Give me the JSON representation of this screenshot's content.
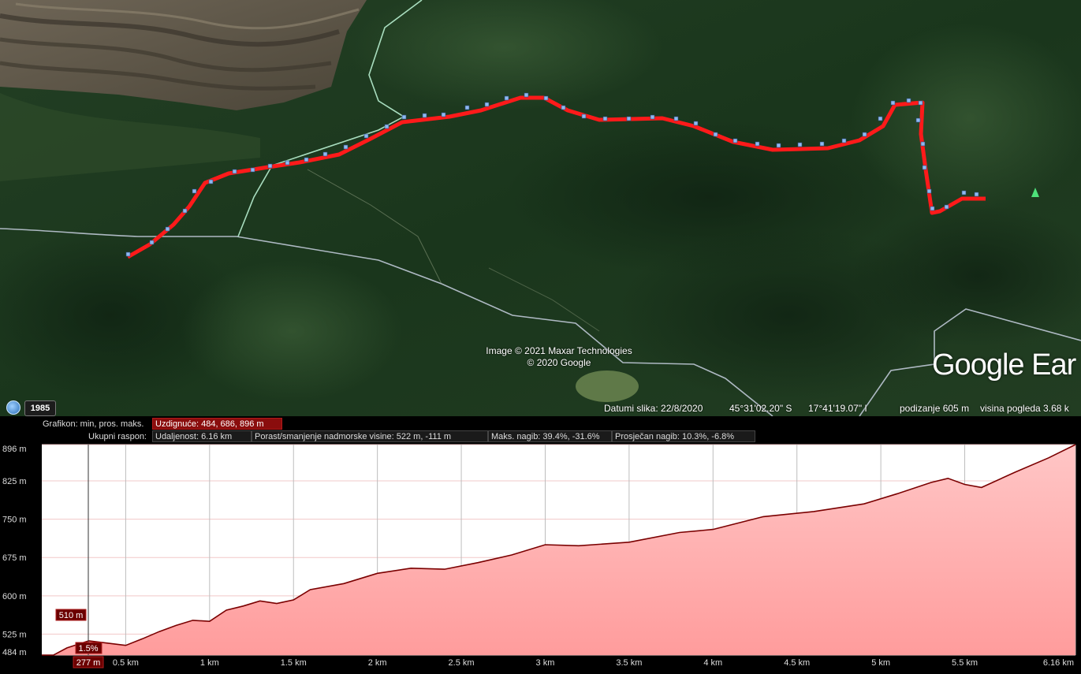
{
  "map": {
    "attribution_line1": "Image © 2021 Maxar Technologies",
    "attribution_line2": "© 2020 Google",
    "logo": "Google Ear",
    "historical_year": "1985",
    "status": {
      "image_date": "Datumi slika: 22/8/2020",
      "latitude": "45°31'02.20\" S",
      "longitude": "17°41'19.07\" I",
      "elevation": "podizanje   605 m",
      "eye_alt": "visina pogleda   3.68 k"
    },
    "colors": {
      "track": "#ff1a1a",
      "track_points": "#8fb8f0",
      "road": "#c8d0e0",
      "trail": "#b8f0d0"
    }
  },
  "profile": {
    "graph_label": "Grafikon: min, pros. maks.",
    "graph_value": "Uzdignuće: 484, 686, 896 m",
    "range_label": "Ukupni raspon:",
    "distance": "Udaljenost: 6.16 km",
    "gain_loss": "Porast/smanjenje nadmorske visine: 522 m, -111 m",
    "max_slope": "Maks. nagib: 39.4%, -31.6%",
    "avg_slope": "Prosječan nagib: 10.3%, -6.8%",
    "cursor_elevation": "510 m",
    "cursor_slope": "1.5%",
    "cursor_distance": "277 m"
  },
  "chart_data": {
    "type": "area",
    "x_unit": "km",
    "y_unit": "m",
    "ylim": [
      484,
      896
    ],
    "xlim": [
      0,
      6.16
    ],
    "y_ticks": [
      "896 m",
      "825 m",
      "750 m",
      "675 m",
      "600 m",
      "525 m",
      "484 m"
    ],
    "y_tick_values": [
      896,
      825,
      750,
      675,
      600,
      525,
      484
    ],
    "x_ticks": [
      "0.5 km",
      "1 km",
      "1.5 km",
      "2 km",
      "2.5 km",
      "3 km",
      "3.5 km",
      "4 km",
      "4.5 km",
      "5 km",
      "5.5 km",
      "6.16 km"
    ],
    "x_tick_values": [
      0.5,
      1,
      1.5,
      2,
      2.5,
      3,
      3.5,
      4,
      4.5,
      5,
      5.5,
      6.16
    ],
    "x": [
      0,
      0.07,
      0.15,
      0.28,
      0.4,
      0.5,
      0.6,
      0.7,
      0.8,
      0.9,
      1.0,
      1.1,
      1.2,
      1.3,
      1.4,
      1.5,
      1.6,
      1.8,
      2.0,
      2.2,
      2.4,
      2.6,
      2.8,
      3.0,
      3.2,
      3.5,
      3.8,
      4.0,
      4.3,
      4.6,
      4.9,
      5.1,
      5.3,
      5.4,
      5.5,
      5.6,
      5.8,
      6.0,
      6.16
    ],
    "y": [
      484,
      484,
      498,
      512,
      507,
      503,
      516,
      530,
      542,
      552,
      550,
      572,
      580,
      590,
      585,
      592,
      612,
      624,
      644,
      654,
      652,
      665,
      680,
      700,
      698,
      705,
      724,
      730,
      755,
      765,
      780,
      800,
      822,
      830,
      818,
      812,
      842,
      870,
      896
    ],
    "ylabel": "",
    "xlabel": "",
    "grid": true,
    "fill_color": "#ffd0d0",
    "line_color": "#7a0000"
  }
}
